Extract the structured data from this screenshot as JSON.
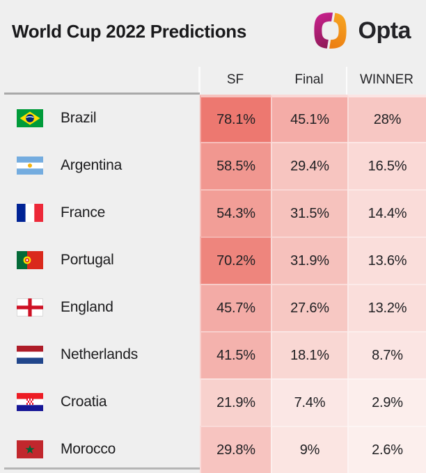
{
  "header": {
    "title": "World Cup 2022 Predictions",
    "logo_text": "Opta"
  },
  "chart_data": {
    "type": "heatmap",
    "title": "World Cup 2022 Predictions",
    "columns": [
      "SF",
      "Final",
      "WINNER"
    ],
    "rows": [
      {
        "team": "Brazil",
        "flag": "brazil",
        "values": [
          78.1,
          45.1,
          28
        ],
        "labels": [
          "78.1%",
          "45.1%",
          "28%"
        ]
      },
      {
        "team": "Argentina",
        "flag": "argentina",
        "values": [
          58.5,
          29.4,
          16.5
        ],
        "labels": [
          "58.5%",
          "29.4%",
          "16.5%"
        ]
      },
      {
        "team": "France",
        "flag": "france",
        "values": [
          54.3,
          31.5,
          14.4
        ],
        "labels": [
          "54.3%",
          "31.5%",
          "14.4%"
        ]
      },
      {
        "team": "Portugal",
        "flag": "portugal",
        "values": [
          70.2,
          31.9,
          13.6
        ],
        "labels": [
          "70.2%",
          "31.9%",
          "13.6%"
        ]
      },
      {
        "team": "England",
        "flag": "england",
        "values": [
          45.7,
          27.6,
          13.2
        ],
        "labels": [
          "45.7%",
          "27.6%",
          "13.2%"
        ]
      },
      {
        "team": "Netherlands",
        "flag": "netherlands",
        "values": [
          41.5,
          18.1,
          8.7
        ],
        "labels": [
          "41.5%",
          "18.1%",
          "8.7%"
        ]
      },
      {
        "team": "Croatia",
        "flag": "croatia",
        "values": [
          21.9,
          7.4,
          2.9
        ],
        "labels": [
          "21.9%",
          "7.4%",
          "2.9%"
        ]
      },
      {
        "team": "Morocco",
        "flag": "morocco",
        "values": [
          29.8,
          9,
          2.6
        ],
        "labels": [
          "29.8%",
          "9%",
          "2.6%"
        ]
      }
    ],
    "color_scale": {
      "min_value": 0,
      "max_value": 100,
      "min_color": "#fdf3f1",
      "max_color": "#e8564c"
    },
    "legend": "none",
    "grid": "off"
  },
  "colors": {
    "page_bg": "#efefef",
    "text": "#1b1b1d",
    "rule": "#a9a9a9",
    "logo_magenta_top": "#cb2191",
    "logo_magenta_bottom": "#8e1a55",
    "logo_orange_top": "#f7a823",
    "logo_orange_bottom": "#ec7d12"
  }
}
